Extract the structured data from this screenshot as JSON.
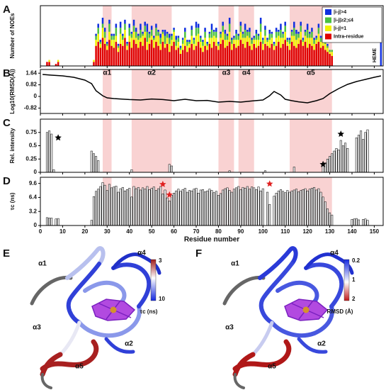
{
  "chart_data": [
    {
      "type": "bar",
      "panel": "A",
      "ylabel": "Number of NOEs",
      "heme_label": "HEME",
      "xlim": [
        0,
        154
      ],
      "ylim": [
        0,
        30
      ],
      "helices": [
        {
          "label": "α1",
          "start": 28,
          "end": 32
        },
        {
          "label": "α2",
          "start": 41,
          "end": 59
        },
        {
          "label": "α3",
          "start": 80,
          "end": 87
        },
        {
          "label": "α4",
          "start": 89,
          "end": 96
        },
        {
          "label": "α5",
          "start": 112,
          "end": 131
        }
      ],
      "x": [
        3,
        4,
        7,
        8,
        23,
        24,
        25,
        26,
        27,
        28,
        29,
        30,
        31,
        32,
        33,
        34,
        35,
        36,
        37,
        38,
        39,
        40,
        41,
        42,
        43,
        44,
        45,
        46,
        47,
        48,
        49,
        50,
        51,
        52,
        53,
        54,
        55,
        56,
        57,
        58,
        59,
        60,
        61,
        62,
        63,
        64,
        65,
        66,
        67,
        68,
        69,
        70,
        71,
        72,
        73,
        74,
        75,
        76,
        77,
        78,
        79,
        80,
        81,
        82,
        83,
        84,
        85,
        86,
        87,
        88,
        89,
        90,
        91,
        92,
        93,
        94,
        95,
        96,
        97,
        98,
        99,
        100,
        101,
        102,
        103,
        104,
        105,
        106,
        107,
        108,
        109,
        110,
        111,
        112,
        113,
        114,
        115,
        116,
        117,
        118,
        119,
        120,
        121,
        122,
        123,
        124,
        125,
        126,
        127,
        128,
        129,
        130,
        131,
        153
      ],
      "series": [
        {
          "name": "Intra-residue",
          "color": "#e00000",
          "values": [
            2,
            2,
            1,
            2,
            0,
            2,
            10,
            12,
            9,
            14,
            11,
            8,
            13,
            10,
            9,
            12,
            7,
            11,
            10,
            14,
            8,
            12,
            9,
            13,
            11,
            9,
            12,
            10,
            14,
            8,
            11,
            13,
            9,
            12,
            10,
            8,
            12,
            9,
            11,
            7,
            10,
            12,
            8,
            9,
            6,
            8,
            10,
            7,
            9,
            11,
            8,
            10,
            12,
            9,
            7,
            10,
            8,
            11,
            9,
            12,
            10,
            8,
            11,
            13,
            9,
            10,
            12,
            8,
            11,
            9,
            10,
            13,
            11,
            9,
            12,
            10,
            8,
            11,
            9,
            10,
            12,
            8,
            11,
            10,
            9,
            11,
            8,
            10,
            12,
            9,
            11,
            13,
            10,
            8,
            12,
            10,
            9,
            11,
            13,
            10,
            12,
            9,
            11,
            10,
            8,
            11,
            12,
            9,
            10,
            8,
            7,
            6,
            5,
            0
          ]
        },
        {
          "name": "|i-j|=1",
          "color": "#f2f200",
          "values": [
            0,
            1,
            0,
            1,
            0,
            1,
            3,
            4,
            2,
            5,
            3,
            2,
            4,
            3,
            4,
            3,
            2,
            5,
            3,
            4,
            2,
            3,
            5,
            4,
            3,
            4,
            2,
            5,
            3,
            4,
            3,
            2,
            4,
            3,
            5,
            3,
            4,
            2,
            3,
            4,
            3,
            5,
            2,
            3,
            2,
            3,
            4,
            3,
            2,
            4,
            3,
            5,
            4,
            3,
            3,
            4,
            2,
            3,
            5,
            3,
            4,
            2,
            3,
            4,
            4,
            3,
            5,
            3,
            2,
            4,
            3,
            4,
            3,
            5,
            3,
            4,
            3,
            2,
            4,
            3,
            5,
            3,
            4,
            2,
            4,
            3,
            2,
            4,
            3,
            5,
            3,
            4,
            2,
            3,
            3,
            5,
            4,
            3,
            4,
            2,
            3,
            5,
            3,
            4,
            3,
            2,
            4,
            3,
            2,
            3,
            2,
            1,
            2,
            0
          ]
        },
        {
          "name": "|i-j|≥2;≤4",
          "color": "#4cc040",
          "values": [
            0,
            0,
            0,
            0,
            0,
            0,
            2,
            3,
            1,
            2,
            3,
            1,
            4,
            2,
            2,
            4,
            1,
            3,
            2,
            3,
            1,
            4,
            2,
            3,
            3,
            2,
            4,
            1,
            3,
            5,
            2,
            3,
            1,
            4,
            2,
            3,
            1,
            4,
            2,
            3,
            2,
            1,
            3,
            2,
            1,
            2,
            3,
            2,
            1,
            3,
            2,
            4,
            3,
            2,
            2,
            3,
            1,
            2,
            4,
            2,
            3,
            1,
            2,
            3,
            3,
            2,
            4,
            2,
            1,
            3,
            2,
            3,
            2,
            4,
            2,
            3,
            2,
            1,
            3,
            2,
            4,
            2,
            3,
            1,
            3,
            2,
            1,
            3,
            2,
            4,
            2,
            3,
            1,
            2,
            2,
            4,
            3,
            2,
            3,
            1,
            2,
            4,
            2,
            3,
            2,
            1,
            3,
            2,
            1,
            2,
            1,
            1,
            1,
            0
          ]
        },
        {
          "name": "|i-j|>4",
          "color": "#1030e0",
          "values": [
            0,
            0,
            0,
            0,
            0,
            0,
            1,
            2,
            1,
            3,
            2,
            1,
            2,
            1,
            1,
            2,
            1,
            3,
            1,
            2,
            1,
            2,
            1,
            3,
            2,
            1,
            3,
            1,
            2,
            4,
            1,
            2,
            1,
            2,
            1,
            2,
            1,
            3,
            1,
            2,
            1,
            1,
            2,
            1,
            1,
            1,
            2,
            1,
            1,
            2,
            1,
            3,
            2,
            1,
            1,
            2,
            1,
            1,
            3,
            1,
            2,
            1,
            1,
            2,
            2,
            1,
            3,
            1,
            1,
            2,
            1,
            2,
            1,
            3,
            1,
            2,
            1,
            1,
            2,
            1,
            3,
            1,
            2,
            1,
            2,
            1,
            1,
            2,
            1,
            3,
            1,
            2,
            1,
            1,
            1,
            3,
            2,
            1,
            2,
            1,
            1,
            3,
            1,
            2,
            1,
            1,
            2,
            1,
            1,
            1,
            1,
            0,
            0,
            14
          ]
        }
      ]
    },
    {
      "type": "line",
      "panel": "B",
      "ylabel": "Log10(RMSD(Å))",
      "xlim": [
        0,
        154
      ],
      "ylim": [
        -1.2,
        1.9
      ],
      "color": "#000000",
      "yticks": [
        -0.82,
        0.0,
        0.82,
        1.64
      ],
      "x": [
        1,
        5,
        10,
        15,
        20,
        23,
        25,
        28,
        30,
        33,
        36,
        40,
        45,
        50,
        55,
        60,
        65,
        70,
        75,
        80,
        85,
        90,
        95,
        100,
        103,
        105,
        108,
        110,
        113,
        116,
        120,
        124,
        127,
        130,
        134,
        138,
        142,
        146,
        150,
        153
      ],
      "values": [
        1.55,
        1.5,
        1.45,
        1.35,
        1.15,
        0.9,
        0.4,
        0.05,
        -0.1,
        -0.15,
        -0.18,
        -0.22,
        -0.25,
        -0.18,
        -0.22,
        -0.3,
        -0.2,
        -0.3,
        -0.28,
        -0.4,
        -0.35,
        -0.4,
        -0.32,
        -0.25,
        0.05,
        0.35,
        0.1,
        -0.2,
        -0.3,
        -0.38,
        -0.45,
        -0.3,
        -0.15,
        0.2,
        0.55,
        0.85,
        1.05,
        1.2,
        1.35,
        1.45
      ]
    },
    {
      "type": "bar",
      "panel": "C",
      "ylabel": "Rel. intensity",
      "xlim": [
        0,
        154
      ],
      "ylim": [
        0,
        1.0
      ],
      "color": "#e8e8e8",
      "yticks": [
        0.0,
        0.25,
        0.5,
        0.75
      ],
      "x": [
        3,
        4,
        5,
        6,
        23,
        24,
        25,
        26,
        41,
        58,
        59,
        85,
        101,
        114,
        127,
        128,
        129,
        130,
        131,
        132,
        133,
        134,
        135,
        136,
        137,
        138,
        142,
        143,
        144,
        145,
        146,
        147
      ],
      "values": [
        0.75,
        0.78,
        0.72,
        0.05,
        0.4,
        0.35,
        0.3,
        0.22,
        0.05,
        0.15,
        0.12,
        0.03,
        0.03,
        0.1,
        0.12,
        0.18,
        0.25,
        0.3,
        0.35,
        0.4,
        0.45,
        0.42,
        0.6,
        0.5,
        0.55,
        0.45,
        0.65,
        0.7,
        0.78,
        0.62,
        0.75,
        0.8
      ],
      "star_color": "#000000",
      "star_x": [
        8,
        127,
        135
      ],
      "star_y": [
        0.65,
        0.15,
        0.72
      ]
    },
    {
      "type": "bar",
      "panel": "D",
      "ylabel": "τc (ns)",
      "xlabel": "Residue number",
      "xlim": [
        0,
        154
      ],
      "ylim": [
        0,
        11
      ],
      "color": "#e8e8e8",
      "yticks": [
        0.0,
        3.2,
        6.4,
        9.6
      ],
      "xticks": [
        0,
        10,
        20,
        30,
        40,
        50,
        60,
        70,
        80,
        90,
        100,
        110,
        120,
        130,
        140,
        150
      ],
      "x": [
        3,
        4,
        5,
        7,
        8,
        23,
        24,
        25,
        26,
        27,
        28,
        29,
        30,
        31,
        32,
        33,
        34,
        35,
        36,
        37,
        38,
        39,
        40,
        41,
        42,
        43,
        44,
        45,
        46,
        47,
        48,
        49,
        50,
        51,
        52,
        53,
        54,
        55,
        56,
        57,
        58,
        59,
        60,
        61,
        62,
        63,
        64,
        65,
        66,
        67,
        68,
        69,
        70,
        71,
        72,
        73,
        74,
        75,
        76,
        77,
        78,
        79,
        80,
        81,
        82,
        83,
        84,
        85,
        86,
        87,
        88,
        89,
        90,
        91,
        92,
        93,
        94,
        95,
        96,
        97,
        98,
        99,
        100,
        101,
        102,
        103,
        104,
        105,
        106,
        107,
        108,
        109,
        110,
        111,
        112,
        113,
        114,
        115,
        116,
        117,
        118,
        119,
        120,
        121,
        122,
        123,
        124,
        125,
        126,
        127,
        128,
        129,
        130,
        131,
        140,
        141,
        142,
        143,
        145,
        146,
        147
      ],
      "values": [
        1.8,
        1.7,
        1.7,
        1.5,
        1.6,
        1.2,
        6.6,
        7.8,
        8.3,
        8.9,
        9.8,
        9.2,
        8.0,
        9.4,
        8.6,
        8.8,
        9.0,
        7.6,
        8.4,
        8.7,
        7.9,
        8.2,
        8.5,
        6.5,
        8.9,
        8.4,
        8.7,
        8.1,
        8.6,
        8.3,
        8.9,
        8.2,
        8.5,
        8.8,
        8.0,
        8.4,
        8.9,
        7.2,
        8.1,
        6.3,
        5.6,
        6.9,
        7.4,
        7.9,
        8.3,
        7.8,
        8.2,
        8.5,
        7.6,
        8.0,
        7.9,
        8.3,
        8.5,
        7.4,
        8.1,
        8.2,
        7.7,
        7.9,
        8.3,
        8.0,
        7.5,
        7.8,
        6.9,
        7.3,
        8.1,
        8.4,
        8.6,
        8.0,
        7.6,
        8.3,
        8.6,
        8.9,
        8.2,
        8.7,
        8.5,
        8.9,
        8.3,
        8.8,
        8.6,
        8.2,
        8.8,
        7.9,
        8.4,
        null,
        7.6,
        4.8,
        null,
        6.7,
        7.4,
        7.9,
        8.2,
        7.8,
        7.5,
        8.0,
        7.6,
        7.9,
        8.1,
        8.3,
        7.7,
        8.0,
        8.2,
        8.4,
        7.9,
        8.3,
        8.5,
        8.7,
        8.1,
        8.4,
        7.6,
        6.5,
        5.4,
        3.8,
        2.9,
        2.4,
        1.4,
        1.5,
        1.6,
        1.3,
        1.4,
        1.5,
        1.2
      ],
      "star_color": "#e02020",
      "star_x": [
        55,
        58,
        103
      ],
      "star_y": [
        9.4,
        7.0,
        9.5
      ]
    }
  ],
  "structures": [
    {
      "panel": "E",
      "helix_labels": [
        "α1",
        "α2",
        "α3",
        "α4",
        "α5"
      ],
      "colorbar": {
        "title": "τc (ns)",
        "ticks": [
          "3",
          "10"
        ]
      }
    },
    {
      "panel": "F",
      "helix_labels": [
        "α1",
        "α2",
        "α3",
        "α4",
        "α5"
      ],
      "colorbar": {
        "title": "RMSD (Å)",
        "ticks": [
          "0.2",
          "1",
          "2"
        ]
      }
    }
  ]
}
